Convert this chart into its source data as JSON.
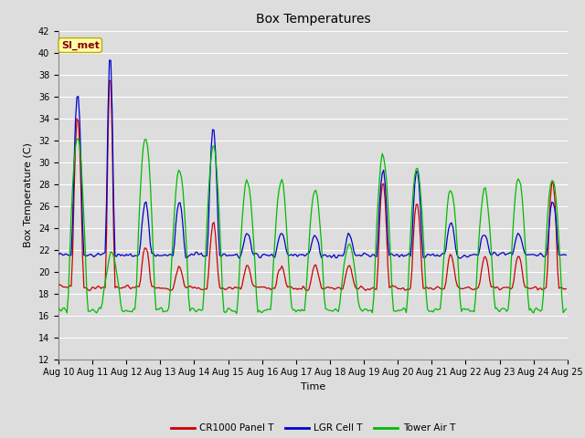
{
  "title": "Box Temperatures",
  "xlabel": "Time",
  "ylabel": "Box Temperature (C)",
  "ylim": [
    12,
    42
  ],
  "yticks": [
    12,
    14,
    16,
    18,
    20,
    22,
    24,
    26,
    28,
    30,
    32,
    34,
    36,
    38,
    40,
    42
  ],
  "xtick_labels": [
    "Aug 10",
    "Aug 11",
    "Aug 12",
    "Aug 13",
    "Aug 14",
    "Aug 15",
    "Aug 16",
    "Aug 17",
    "Aug 18",
    "Aug 19",
    "Aug 20",
    "Aug 21",
    "Aug 22",
    "Aug 23",
    "Aug 24",
    "Aug 25"
  ],
  "bg_color": "#dddddd",
  "plot_bg_color": "#dddddd",
  "grid_color": "#ffffff",
  "line_colors": {
    "cr1000": "#cc0000",
    "lgr": "#0000cc",
    "tower": "#00bb00"
  },
  "legend_labels": [
    "CR1000 Panel T",
    "LGR Cell T",
    "Tower Air T"
  ],
  "watermark_text": "SI_met",
  "watermark_color": "#8b0000",
  "watermark_bg": "#ffffaa",
  "title_fontsize": 10,
  "label_fontsize": 8,
  "tick_fontsize": 7
}
